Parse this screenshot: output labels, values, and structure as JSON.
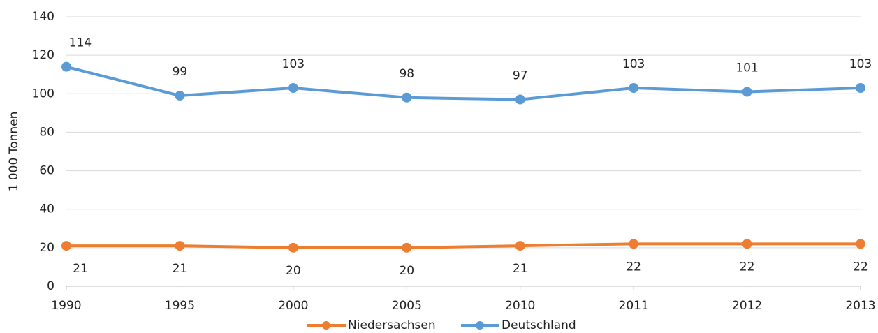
{
  "chart_data": {
    "type": "line",
    "y_label": "1 000 Tonnen",
    "categories": [
      "1990",
      "1995",
      "2000",
      "2005",
      "2010",
      "2011",
      "2012",
      "2013"
    ],
    "series": [
      {
        "name": "Niedersachsen",
        "color": "#ed7d31",
        "values": [
          21,
          21,
          20,
          20,
          21,
          22,
          22,
          22
        ]
      },
      {
        "name": "Deutschland",
        "color": "#5b9bd5",
        "values": [
          114,
          99,
          103,
          98,
          97,
          103,
          101,
          103
        ]
      }
    ],
    "ylim": [
      0,
      140
    ],
    "yticks": [
      0,
      20,
      40,
      60,
      80,
      100,
      120,
      140
    ],
    "grid": true,
    "legend": "bottom"
  }
}
